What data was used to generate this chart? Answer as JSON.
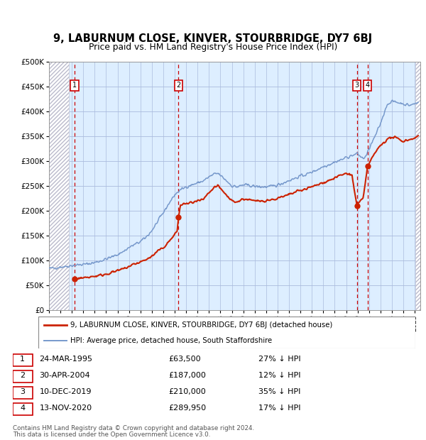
{
  "title": "9, LABURNUM CLOSE, KINVER, STOURBRIDGE, DY7 6BJ",
  "subtitle": "Price paid vs. HM Land Registry's House Price Index (HPI)",
  "ylim": [
    0,
    500000
  ],
  "ytick_vals": [
    0,
    50000,
    100000,
    150000,
    200000,
    250000,
    300000,
    350000,
    400000,
    450000,
    500000
  ],
  "ytick_labels": [
    "£0",
    "£50K",
    "£100K",
    "£150K",
    "£200K",
    "£250K",
    "£300K",
    "£350K",
    "£400K",
    "£450K",
    "£500K"
  ],
  "xlim": [
    1993.0,
    2025.5
  ],
  "hatch_end": 1994.75,
  "hatch_start_r": 2025.05,
  "hpi_color": "#7799cc",
  "price_color": "#cc2200",
  "vline_color": "#cc0000",
  "bg_color": "#ddeeff",
  "grid_color": "#aabbdd",
  "hatch_color": "#bbbbcc",
  "sales": [
    {
      "year": 1995.23,
      "price": 63500,
      "label": "1"
    },
    {
      "year": 2004.33,
      "price": 187000,
      "label": "2"
    },
    {
      "year": 2019.94,
      "price": 210000,
      "label": "3"
    },
    {
      "year": 2020.87,
      "price": 289950,
      "label": "4"
    }
  ],
  "hpi_keypoints": [
    [
      1993.0,
      84000
    ],
    [
      1993.5,
      85000
    ],
    [
      1994.0,
      87000
    ],
    [
      1994.5,
      88000
    ],
    [
      1995.0,
      90000
    ],
    [
      1995.5,
      91000
    ],
    [
      1996.0,
      92000
    ],
    [
      1996.5,
      93500
    ],
    [
      1997.0,
      96000
    ],
    [
      1997.5,
      99000
    ],
    [
      1998.0,
      103000
    ],
    [
      1998.5,
      107000
    ],
    [
      1999.0,
      112000
    ],
    [
      1999.5,
      118000
    ],
    [
      2000.0,
      126000
    ],
    [
      2000.5,
      132000
    ],
    [
      2001.0,
      138000
    ],
    [
      2001.5,
      147000
    ],
    [
      2002.0,
      160000
    ],
    [
      2002.5,
      178000
    ],
    [
      2003.0,
      196000
    ],
    [
      2003.5,
      215000
    ],
    [
      2004.0,
      232000
    ],
    [
      2004.5,
      242000
    ],
    [
      2005.0,
      248000
    ],
    [
      2005.5,
      252000
    ],
    [
      2006.0,
      256000
    ],
    [
      2006.5,
      260000
    ],
    [
      2007.0,
      268000
    ],
    [
      2007.5,
      274000
    ],
    [
      2007.8,
      275000
    ],
    [
      2008.0,
      271000
    ],
    [
      2008.5,
      261000
    ],
    [
      2009.0,
      250000
    ],
    [
      2009.5,
      248000
    ],
    [
      2010.0,
      252000
    ],
    [
      2010.5,
      251000
    ],
    [
      2011.0,
      249000
    ],
    [
      2011.5,
      248000
    ],
    [
      2012.0,
      248000
    ],
    [
      2012.5,
      249000
    ],
    [
      2013.0,
      252000
    ],
    [
      2013.5,
      256000
    ],
    [
      2014.0,
      261000
    ],
    [
      2014.5,
      265000
    ],
    [
      2015.0,
      270000
    ],
    [
      2015.5,
      273000
    ],
    [
      2016.0,
      278000
    ],
    [
      2016.5,
      283000
    ],
    [
      2017.0,
      289000
    ],
    [
      2017.5,
      293000
    ],
    [
      2018.0,
      298000
    ],
    [
      2018.5,
      302000
    ],
    [
      2019.0,
      307000
    ],
    [
      2019.5,
      311000
    ],
    [
      2020.0,
      315000
    ],
    [
      2020.3,
      308000
    ],
    [
      2020.5,
      305000
    ],
    [
      2020.8,
      312000
    ],
    [
      2021.0,
      325000
    ],
    [
      2021.5,
      348000
    ],
    [
      2022.0,
      375000
    ],
    [
      2022.3,
      395000
    ],
    [
      2022.5,
      410000
    ],
    [
      2022.8,
      418000
    ],
    [
      2023.0,
      420000
    ],
    [
      2023.5,
      418000
    ],
    [
      2024.0,
      415000
    ],
    [
      2024.5,
      412000
    ],
    [
      2025.0,
      415000
    ],
    [
      2025.3,
      418000
    ]
  ],
  "pp_keypoints": [
    [
      1995.23,
      63500
    ],
    [
      1995.5,
      64000
    ],
    [
      1996.0,
      65000
    ],
    [
      1996.5,
      67000
    ],
    [
      1997.0,
      68500
    ],
    [
      1997.5,
      70000
    ],
    [
      1998.0,
      73000
    ],
    [
      1998.5,
      76000
    ],
    [
      1999.0,
      79000
    ],
    [
      1999.5,
      83000
    ],
    [
      2000.0,
      88000
    ],
    [
      2000.5,
      93000
    ],
    [
      2001.0,
      97000
    ],
    [
      2001.5,
      102000
    ],
    [
      2002.0,
      108000
    ],
    [
      2002.5,
      118000
    ],
    [
      2003.0,
      126000
    ],
    [
      2003.5,
      138000
    ],
    [
      2004.0,
      152000
    ],
    [
      2004.2,
      158000
    ],
    [
      2004.33,
      187000
    ],
    [
      2004.5,
      210000
    ],
    [
      2004.8,
      215000
    ],
    [
      2005.0,
      213000
    ],
    [
      2005.5,
      217000
    ],
    [
      2006.0,
      219000
    ],
    [
      2006.5,
      222000
    ],
    [
      2007.0,
      235000
    ],
    [
      2007.5,
      248000
    ],
    [
      2007.8,
      250000
    ],
    [
      2008.0,
      244000
    ],
    [
      2008.5,
      232000
    ],
    [
      2009.0,
      220000
    ],
    [
      2009.5,
      218000
    ],
    [
      2010.0,
      224000
    ],
    [
      2010.5,
      222000
    ],
    [
      2011.0,
      219000
    ],
    [
      2011.5,
      220000
    ],
    [
      2012.0,
      221000
    ],
    [
      2012.5,
      222000
    ],
    [
      2013.0,
      225000
    ],
    [
      2013.5,
      228000
    ],
    [
      2014.0,
      232000
    ],
    [
      2014.5,
      237000
    ],
    [
      2015.0,
      241000
    ],
    [
      2015.5,
      244000
    ],
    [
      2016.0,
      248000
    ],
    [
      2016.5,
      252000
    ],
    [
      2017.0,
      257000
    ],
    [
      2017.5,
      261000
    ],
    [
      2018.0,
      266000
    ],
    [
      2018.5,
      271000
    ],
    [
      2019.0,
      275000
    ],
    [
      2019.5,
      272000
    ],
    [
      2019.94,
      210000
    ],
    [
      2020.0,
      213000
    ],
    [
      2020.5,
      225000
    ],
    [
      2020.87,
      289950
    ],
    [
      2021.0,
      295000
    ],
    [
      2021.5,
      315000
    ],
    [
      2022.0,
      332000
    ],
    [
      2022.5,
      342000
    ],
    [
      2023.0,
      348000
    ],
    [
      2023.5,
      345000
    ],
    [
      2024.0,
      340000
    ],
    [
      2024.5,
      343000
    ],
    [
      2025.0,
      347000
    ],
    [
      2025.3,
      349000
    ]
  ],
  "sale_table": [
    {
      "num": "1",
      "date": "24-MAR-1995",
      "price": "£63,500",
      "note": "27% ↓ HPI"
    },
    {
      "num": "2",
      "date": "30-APR-2004",
      "price": "£187,000",
      "note": "12% ↓ HPI"
    },
    {
      "num": "3",
      "date": "10-DEC-2019",
      "price": "£210,000",
      "note": "35% ↓ HPI"
    },
    {
      "num": "4",
      "date": "13-NOV-2020",
      "price": "£289,950",
      "note": "17% ↓ HPI"
    }
  ],
  "legend_line1": "9, LABURNUM CLOSE, KINVER, STOURBRIDGE, DY7 6BJ (detached house)",
  "legend_line2": "HPI: Average price, detached house, South Staffordshire",
  "footer1": "Contains HM Land Registry data © Crown copyright and database right 2024.",
  "footer2": "This data is licensed under the Open Government Licence v3.0."
}
